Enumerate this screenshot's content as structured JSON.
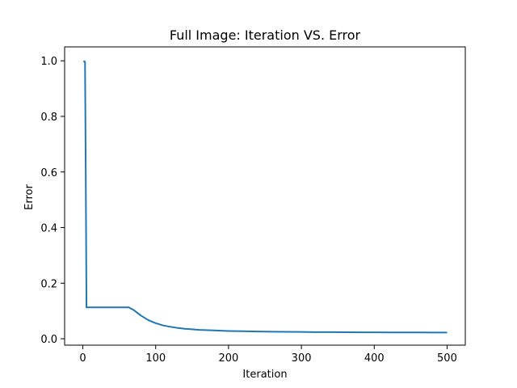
{
  "chart_data": {
    "type": "line",
    "title": "Full Image: Iteration VS. Error",
    "xlabel": "Iteration",
    "ylabel": "Error",
    "xlim": [
      -25,
      525
    ],
    "ylim": [
      -0.023,
      1.05
    ],
    "xticks": [
      0,
      100,
      200,
      300,
      400,
      500
    ],
    "xtick_labels": [
      "0",
      "100",
      "200",
      "300",
      "400",
      "500"
    ],
    "yticks": [
      0.0,
      0.2,
      0.4,
      0.6,
      0.8,
      1.0
    ],
    "ytick_labels": [
      "0.0",
      "0.2",
      "0.4",
      "0.6",
      "0.8",
      "1.0"
    ],
    "grid": false,
    "series": [
      {
        "name": "error",
        "color": "#1f77b4",
        "x": [
          1,
          2,
          3,
          4,
          5,
          6,
          10,
          20,
          30,
          40,
          50,
          60,
          63,
          70,
          80,
          90,
          100,
          110,
          120,
          130,
          140,
          150,
          160,
          180,
          200,
          220,
          240,
          260,
          280,
          300,
          320,
          340,
          360,
          380,
          400,
          420,
          440,
          460,
          480,
          500
        ],
        "y": [
          1.0,
          0.997,
          0.997,
          0.6,
          0.113,
          0.113,
          0.113,
          0.113,
          0.113,
          0.113,
          0.113,
          0.113,
          0.113,
          0.103,
          0.083,
          0.067,
          0.056,
          0.048,
          0.043,
          0.039,
          0.036,
          0.034,
          0.032,
          0.03,
          0.028,
          0.027,
          0.026,
          0.0255,
          0.025,
          0.0245,
          0.024,
          0.0238,
          0.0235,
          0.0232,
          0.023,
          0.0229,
          0.0228,
          0.0227,
          0.0226,
          0.0225
        ]
      }
    ]
  }
}
